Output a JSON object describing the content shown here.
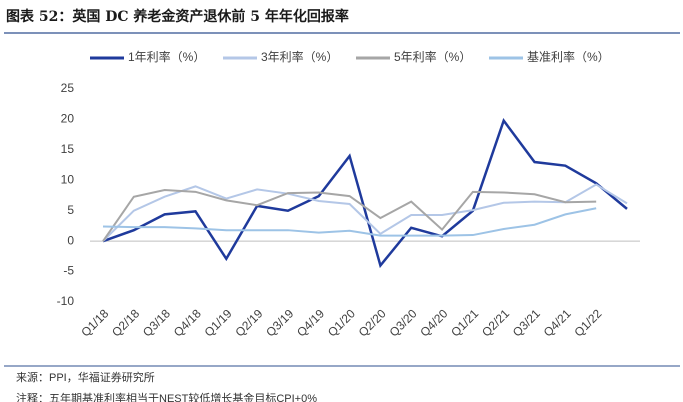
{
  "chart_data": {
    "type": "line",
    "title": "图表 52：英国 DC 养老金资产退休前 5 年年化回报率",
    "categories": [
      "Q1/18",
      "Q2/18",
      "Q3/18",
      "Q4/18",
      "Q1/19",
      "Q2/19",
      "Q3/19",
      "Q4/19",
      "Q1/20",
      "Q2/20",
      "Q3/20",
      "Q4/20",
      "Q1/21",
      "Q2/21",
      "Q3/21",
      "Q4/21",
      "Q1/22",
      null
    ],
    "series": [
      {
        "name": "1年利率（%）",
        "color": "#1f3a9c",
        "values": [
          0,
          1.8,
          4.4,
          4.9,
          -2.9,
          5.8,
          5.0,
          7.4,
          14.0,
          -4.0,
          2.2,
          0.8,
          5.0,
          19.8,
          13.0,
          12.4,
          9.5,
          5.3
        ]
      },
      {
        "name": "3年利率（%）",
        "color": "#b4c7e7",
        "values": [
          0,
          5.0,
          7.3,
          9.0,
          7.0,
          8.5,
          7.8,
          6.6,
          6.1,
          1.2,
          4.3,
          4.3,
          5.1,
          6.3,
          6.5,
          6.4,
          9.3,
          6.2
        ]
      },
      {
        "name": "5年利率（%）",
        "color": "#a6a6a6",
        "values": [
          0,
          7.3,
          8.4,
          8.1,
          6.7,
          5.9,
          7.9,
          8.0,
          7.4,
          3.8,
          6.5,
          1.9,
          8.1,
          8.0,
          7.7,
          6.4,
          6.5,
          null
        ]
      },
      {
        "name": "基准利率（%）",
        "color": "#9dc3e6",
        "values": [
          2.4,
          2.3,
          2.3,
          2.1,
          1.8,
          1.8,
          1.8,
          1.4,
          1.7,
          0.9,
          0.9,
          0.9,
          1.0,
          2.0,
          2.7,
          4.4,
          5.4,
          null
        ]
      }
    ],
    "ylim": [
      -10,
      25
    ],
    "yticks": [
      -10,
      -5,
      0,
      5,
      10,
      15,
      20,
      25
    ],
    "source": "来源：PPI，华福证券研究所",
    "note": "注释：五年期基准利率相当于NEST较低增长基金目标CPI+0%"
  }
}
